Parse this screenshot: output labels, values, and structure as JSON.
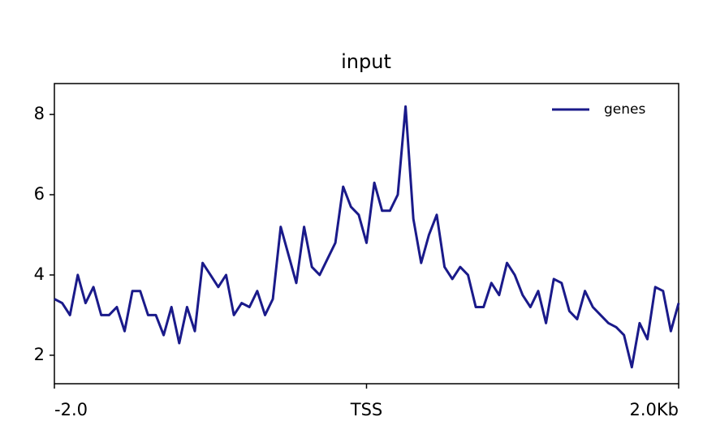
{
  "chart_data": {
    "type": "line",
    "title": "input",
    "x": [
      -2,
      -1.95,
      -1.9,
      -1.85,
      -1.8,
      -1.75,
      -1.7,
      -1.65,
      -1.6,
      -1.55,
      -1.5,
      -1.45,
      -1.4,
      -1.35,
      -1.3,
      -1.25,
      -1.2,
      -1.15,
      -1.1,
      -1.05,
      -1,
      -0.95,
      -0.9,
      -0.85,
      -0.8,
      -0.75,
      -0.7,
      -0.65,
      -0.6,
      -0.55,
      -0.5,
      -0.45,
      -0.4,
      -0.35,
      -0.3,
      -0.25,
      -0.2,
      -0.15,
      -0.1,
      -0.05,
      0,
      0.05,
      0.1,
      0.15,
      0.2,
      0.25,
      0.3,
      0.35,
      0.4,
      0.45,
      0.5,
      0.55,
      0.6,
      0.65,
      0.7,
      0.75,
      0.8,
      0.85,
      0.9,
      0.95,
      1,
      1.05,
      1.1,
      1.15,
      1.2,
      1.25,
      1.3,
      1.35,
      1.4,
      1.45,
      1.5,
      1.55,
      1.6,
      1.65,
      1.7,
      1.75,
      1.8,
      1.85,
      1.9,
      1.95,
      2
    ],
    "series": [
      {
        "name": "genes",
        "color": "#1a1a8a",
        "values": [
          3.4,
          3.3,
          3.0,
          4.0,
          3.3,
          3.7,
          3.0,
          3.0,
          3.2,
          2.6,
          3.6,
          3.6,
          3.0,
          3.0,
          2.5,
          3.2,
          2.3,
          3.2,
          2.6,
          4.3,
          4.0,
          3.7,
          4.0,
          3.0,
          3.3,
          3.2,
          3.6,
          3.0,
          3.4,
          5.2,
          4.5,
          3.8,
          5.2,
          4.2,
          4.0,
          4.4,
          4.8,
          6.2,
          5.7,
          5.5,
          4.8,
          6.3,
          5.6,
          5.6,
          6.0,
          8.2,
          5.4,
          4.3,
          5.0,
          5.5,
          4.2,
          3.9,
          4.2,
          4.0,
          3.2,
          3.2,
          3.8,
          3.5,
          4.3,
          4.0,
          3.5,
          3.2,
          3.6,
          2.8,
          3.9,
          3.8,
          3.1,
          2.9,
          3.6,
          3.2,
          3.0,
          2.8,
          2.7,
          2.5,
          1.7,
          2.8,
          2.4,
          3.7,
          3.6,
          2.6,
          3.3
        ]
      }
    ],
    "xlim": [
      -2,
      2
    ],
    "xticks": [
      {
        "value": -2,
        "label": "-2.0"
      },
      {
        "value": 0,
        "label": "TSS"
      },
      {
        "value": 2,
        "label": "2.0Kb"
      }
    ],
    "ylim": [
      1.29,
      8.77
    ],
    "yticks": [
      2,
      4,
      6,
      8
    ],
    "legend": "upper right",
    "grid": false
  }
}
